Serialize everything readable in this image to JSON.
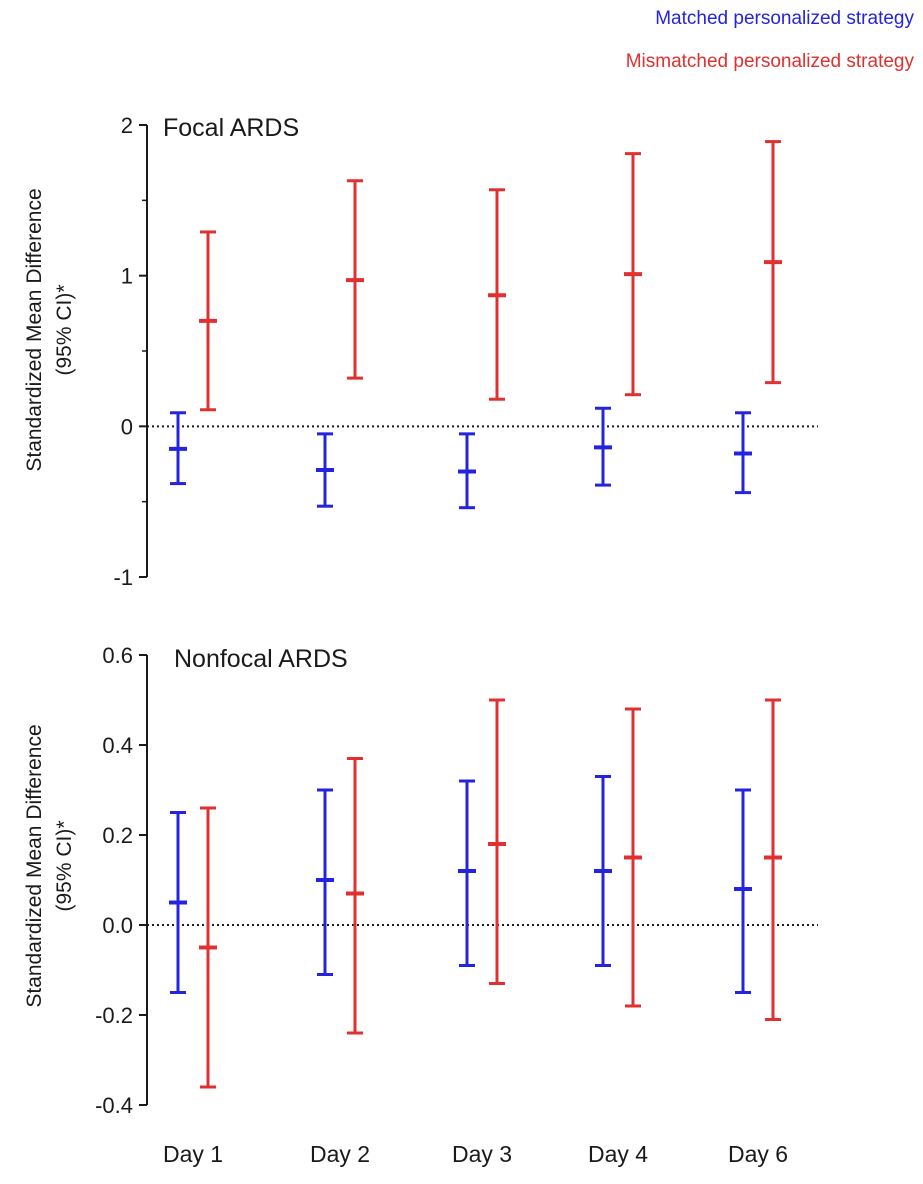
{
  "legend": {
    "matched": "Matched personalized strategy",
    "mismatched": "Mismatched personalized strategy"
  },
  "colors": {
    "matched": "#2424e0",
    "mismatched": "#e03030",
    "axis": "#1a1a1a"
  },
  "chart_data": [
    {
      "type": "errorbar",
      "title": "Focal ARDS",
      "ylabel_line1": "Standardized Mean Difference",
      "ylabel_line2": "(95% CI)*",
      "ylim": [
        -1,
        2
      ],
      "yticks": [
        "2",
        "1",
        "0",
        "-1"
      ],
      "ytick_values": [
        2,
        1,
        0,
        -1
      ],
      "minor_ticks": true,
      "reference_line": 0,
      "categories": [
        "Day 1",
        "Day 2",
        "Day 3",
        "Day 4",
        "Day 6"
      ],
      "series": [
        {
          "name": "Matched personalized strategy",
          "color_key": "matched",
          "mean": [
            -0.15,
            -0.29,
            -0.3,
            -0.14,
            -0.18
          ],
          "lower": [
            -0.38,
            -0.53,
            -0.54,
            -0.39,
            -0.44
          ],
          "upper": [
            0.09,
            -0.05,
            -0.05,
            0.12,
            0.09
          ]
        },
        {
          "name": "Mismatched personalized strategy",
          "color_key": "mismatched",
          "mean": [
            0.7,
            0.97,
            0.87,
            1.01,
            1.09
          ],
          "lower": [
            0.11,
            0.32,
            0.18,
            0.21,
            0.29
          ],
          "upper": [
            1.29,
            1.63,
            1.57,
            1.81,
            1.89
          ]
        }
      ]
    },
    {
      "type": "errorbar",
      "title": "Nonfocal ARDS",
      "ylabel_line1": "Standardized Mean Difference",
      "ylabel_line2": "(95% CI)*",
      "ylim": [
        -0.4,
        0.6
      ],
      "yticks": [
        "0.6",
        "0.4",
        "0.2",
        "0.0",
        "-0.2",
        "-0.4"
      ],
      "ytick_values": [
        0.6,
        0.4,
        0.2,
        0.0,
        -0.2,
        -0.4
      ],
      "minor_ticks": false,
      "reference_line": 0,
      "categories": [
        "Day 1",
        "Day 2",
        "Day 3",
        "Day 4",
        "Day 6"
      ],
      "series": [
        {
          "name": "Matched personalized strategy",
          "color_key": "matched",
          "mean": [
            0.05,
            0.1,
            0.12,
            0.12,
            0.08
          ],
          "lower": [
            -0.15,
            -0.11,
            -0.09,
            -0.09,
            -0.15
          ],
          "upper": [
            0.25,
            0.3,
            0.32,
            0.33,
            0.3
          ]
        },
        {
          "name": "Mismatched personalized strategy",
          "color_key": "mismatched",
          "mean": [
            -0.05,
            0.07,
            0.18,
            0.15,
            0.15
          ],
          "lower": [
            -0.36,
            -0.24,
            -0.13,
            -0.18,
            -0.21
          ],
          "upper": [
            0.26,
            0.37,
            0.5,
            0.48,
            0.5
          ]
        }
      ]
    }
  ]
}
